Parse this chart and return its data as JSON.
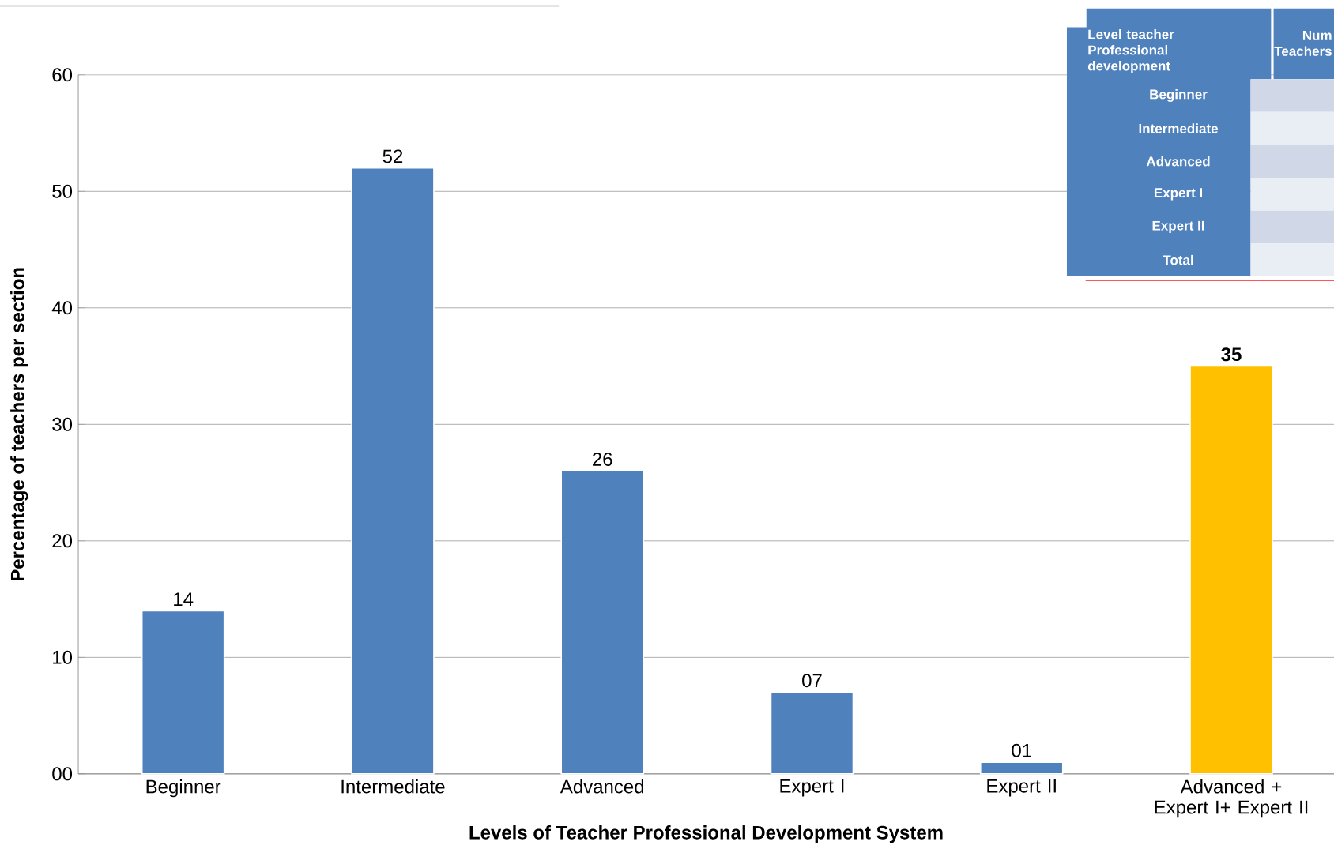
{
  "chart_data": {
    "type": "bar",
    "xlabel": "Levels of Teacher Professional Development System",
    "ylabel": "Percentage of teachers per section",
    "categories": [
      "Beginner",
      "Intermediate",
      "Advanced",
      "Expert I",
      "Expert II",
      "Advanced + Expert I+ Expert II"
    ],
    "values": [
      14,
      52,
      26,
      7,
      1,
      35
    ],
    "colors": [
      "#4f81bd",
      "#4f81bd",
      "#4f81bd",
      "#4f81bd",
      "#4f81bd",
      "#ffc000"
    ],
    "value_labels": [
      "14",
      "52",
      "26",
      "07",
      "01",
      "**35**"
    ],
    "ylim": [
      0,
      60
    ],
    "yticks": [
      {
        "value": 0,
        "label": "00"
      },
      10,
      20,
      30,
      40,
      50,
      60
    ],
    "grid": "y",
    "annotations": [
      "Level  teacher Professional development",
      "Num",
      "Teachers",
      "Beginner",
      "Intermediate",
      "Advanced",
      "Expert I",
      "Expert II",
      "Total"
    ]
  }
}
